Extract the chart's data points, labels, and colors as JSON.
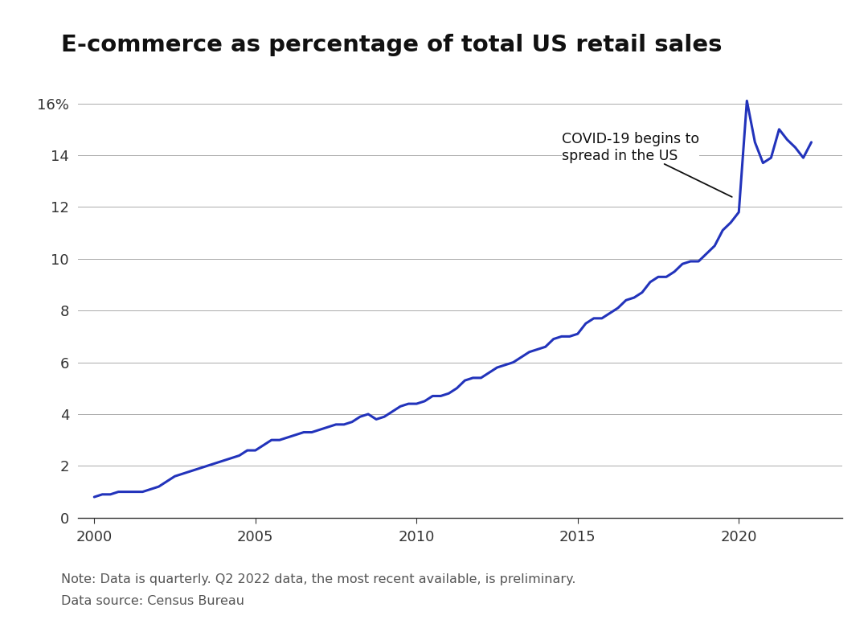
{
  "title": "E-commerce as percentage of total US retail sales",
  "line_color": "#2233BB",
  "background_color": "#ffffff",
  "note_line1": "Note: Data is quarterly. Q2 2022 data, the most recent available, is preliminary.",
  "note_line2": "Data source: Census Bureau",
  "annotation_text": "COVID-19 begins to\nspread in the US",
  "ylim": [
    0,
    17
  ],
  "yticks": [
    0,
    2,
    4,
    6,
    8,
    10,
    12,
    14,
    16
  ],
  "ytick_labels": [
    "0",
    "2",
    "4",
    "6",
    "8",
    "10",
    "12",
    "14",
    "16%"
  ],
  "xlim": [
    1999.5,
    2023.2
  ],
  "xticks": [
    2000,
    2005,
    2010,
    2015,
    2020
  ],
  "data": {
    "quarters": [
      2000.0,
      2000.25,
      2000.5,
      2000.75,
      2001.0,
      2001.25,
      2001.5,
      2001.75,
      2002.0,
      2002.25,
      2002.5,
      2002.75,
      2003.0,
      2003.25,
      2003.5,
      2003.75,
      2004.0,
      2004.25,
      2004.5,
      2004.75,
      2005.0,
      2005.25,
      2005.5,
      2005.75,
      2006.0,
      2006.25,
      2006.5,
      2006.75,
      2007.0,
      2007.25,
      2007.5,
      2007.75,
      2008.0,
      2008.25,
      2008.5,
      2008.75,
      2009.0,
      2009.25,
      2009.5,
      2009.75,
      2010.0,
      2010.25,
      2010.5,
      2010.75,
      2011.0,
      2011.25,
      2011.5,
      2011.75,
      2012.0,
      2012.25,
      2012.5,
      2012.75,
      2013.0,
      2013.25,
      2013.5,
      2013.75,
      2014.0,
      2014.25,
      2014.5,
      2014.75,
      2015.0,
      2015.25,
      2015.5,
      2015.75,
      2016.0,
      2016.25,
      2016.5,
      2016.75,
      2017.0,
      2017.25,
      2017.5,
      2017.75,
      2018.0,
      2018.25,
      2018.5,
      2018.75,
      2019.0,
      2019.25,
      2019.5,
      2019.75,
      2020.0,
      2020.25,
      2020.5,
      2020.75,
      2021.0,
      2021.25,
      2021.5,
      2021.75,
      2022.0,
      2022.25
    ],
    "values": [
      0.8,
      0.9,
      0.9,
      1.0,
      1.0,
      1.0,
      1.0,
      1.1,
      1.2,
      1.4,
      1.6,
      1.7,
      1.8,
      1.9,
      2.0,
      2.1,
      2.2,
      2.3,
      2.4,
      2.6,
      2.6,
      2.8,
      3.0,
      3.0,
      3.1,
      3.2,
      3.3,
      3.3,
      3.4,
      3.5,
      3.6,
      3.6,
      3.7,
      3.9,
      4.0,
      3.8,
      3.9,
      4.1,
      4.3,
      4.4,
      4.4,
      4.5,
      4.7,
      4.7,
      4.8,
      5.0,
      5.3,
      5.4,
      5.4,
      5.6,
      5.8,
      5.9,
      6.0,
      6.2,
      6.4,
      6.5,
      6.6,
      6.9,
      7.0,
      7.0,
      7.1,
      7.5,
      7.7,
      7.7,
      7.9,
      8.1,
      8.4,
      8.5,
      8.7,
      9.1,
      9.3,
      9.3,
      9.5,
      9.8,
      9.9,
      9.9,
      10.2,
      10.5,
      11.1,
      11.4,
      11.8,
      16.1,
      14.5,
      13.7,
      13.9,
      15.0,
      14.6,
      14.3,
      13.9,
      14.5
    ]
  }
}
